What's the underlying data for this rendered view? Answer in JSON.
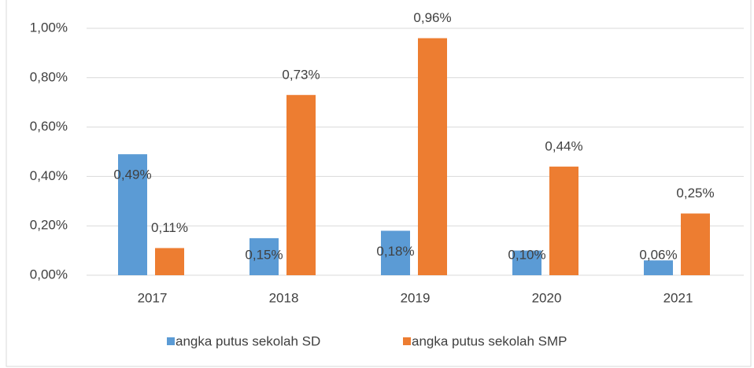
{
  "chart_data": {
    "type": "bar",
    "categories": [
      "2017",
      "2018",
      "2019",
      "2020",
      "2021"
    ],
    "series": [
      {
        "name": "angka putus sekolah SD",
        "color": "#5b9bd5",
        "values": [
          0.49,
          0.15,
          0.18,
          0.1,
          0.06
        ],
        "value_labels": [
          "0,49%",
          "0,15%",
          "0,18%",
          "0,10%",
          "0,06%"
        ]
      },
      {
        "name": "angka putus sekolah SMP",
        "color": "#ed7d31",
        "values": [
          0.11,
          0.73,
          0.96,
          0.44,
          0.25
        ],
        "value_labels": [
          "0,11%",
          "0,73%",
          "0,96%",
          "0,44%",
          "0,25%"
        ]
      }
    ],
    "ylim": [
      0,
      1
    ],
    "yticks": [
      {
        "value": 0,
        "label": "0,00%"
      },
      {
        "value": 0.2,
        "label": "0,20%"
      },
      {
        "value": 0.4,
        "label": "0,40%"
      },
      {
        "value": 0.6,
        "label": "0,60%"
      },
      {
        "value": 0.8,
        "label": "0,80%"
      },
      {
        "value": 1,
        "label": "1,00%"
      }
    ],
    "grid": true,
    "legend": "bottom"
  }
}
